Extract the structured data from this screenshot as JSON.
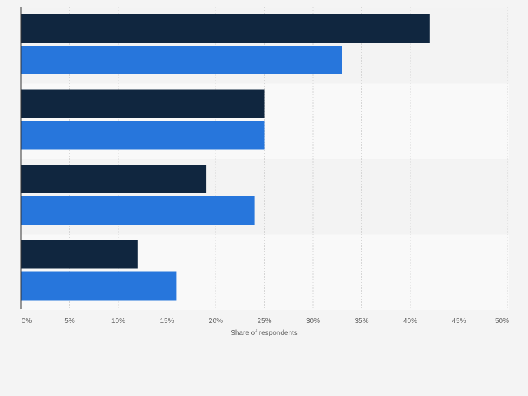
{
  "chart_data": {
    "type": "bar",
    "orientation": "horizontal",
    "categories": [
      "",
      "",
      "",
      ""
    ],
    "series": [
      {
        "name": "",
        "color": "#10263f",
        "values": [
          42,
          25,
          19,
          12
        ]
      },
      {
        "name": "",
        "color": "#2776dc",
        "values": [
          33,
          25,
          24,
          16
        ]
      }
    ],
    "xlim": [
      0,
      50
    ],
    "xticks": [
      0,
      5,
      10,
      15,
      20,
      25,
      30,
      35,
      40,
      45,
      50
    ],
    "xtick_labels": [
      "0%",
      "5%",
      "10%",
      "15%",
      "20%",
      "25%",
      "30%",
      "35%",
      "40%",
      "45%",
      "50%"
    ],
    "xlabel": "Share of respondents",
    "ylabel": "",
    "title": "",
    "grid": true,
    "band_colors": [
      "#f3f3f3",
      "#f9f9f9"
    ]
  }
}
